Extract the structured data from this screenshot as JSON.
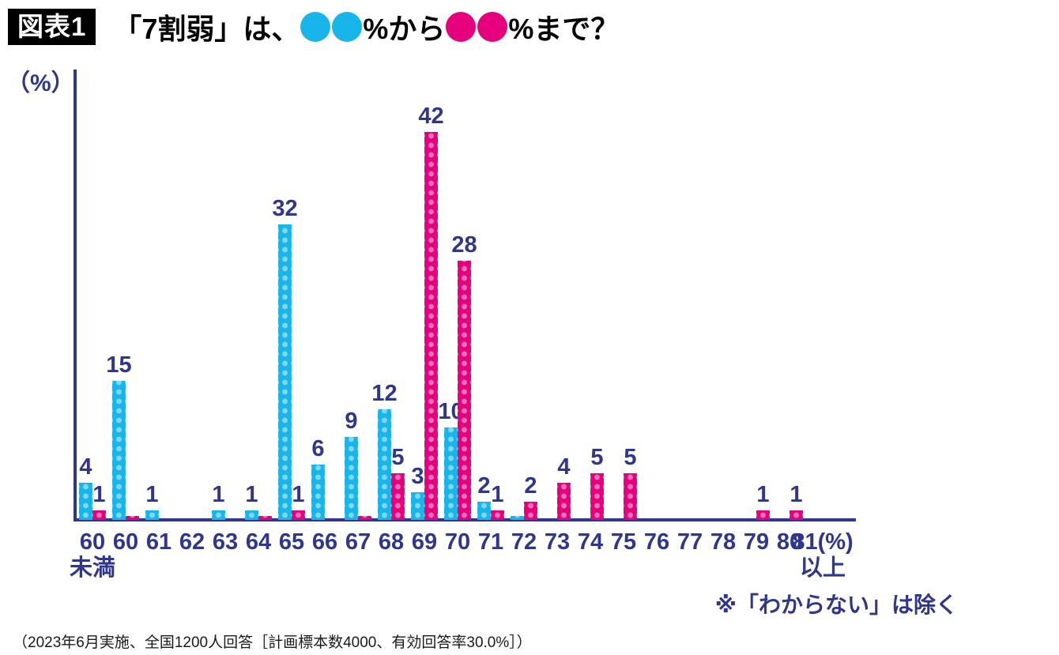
{
  "header": {
    "badge": "図表1",
    "title_prefix": "「7割弱」は、",
    "title_mid": "%から",
    "title_suffix": "%まで？"
  },
  "colors": {
    "navy": "#2f3690",
    "cyan": "#17b5ea",
    "magenta": "#e6007e"
  },
  "chart_data": {
    "type": "bar",
    "title": "「7割弱」は、●●%から●●%まで？",
    "xlabel": "",
    "ylabel": "（%）",
    "ylim": [
      0,
      45
    ],
    "grid": false,
    "legend_position": "none",
    "categories": [
      {
        "line1": "60",
        "line2": "未満"
      },
      {
        "line1": "60"
      },
      {
        "line1": "61"
      },
      {
        "line1": "62"
      },
      {
        "line1": "63"
      },
      {
        "line1": "64"
      },
      {
        "line1": "65"
      },
      {
        "line1": "66"
      },
      {
        "line1": "67"
      },
      {
        "line1": "68"
      },
      {
        "line1": "69"
      },
      {
        "line1": "70"
      },
      {
        "line1": "71"
      },
      {
        "line1": "72"
      },
      {
        "line1": "73"
      },
      {
        "line1": "74"
      },
      {
        "line1": "75"
      },
      {
        "line1": "76"
      },
      {
        "line1": "77"
      },
      {
        "line1": "78"
      },
      {
        "line1": "79"
      },
      {
        "line1": "80"
      },
      {
        "line1": "81(%)",
        "line2": "以上"
      }
    ],
    "series": [
      {
        "key": "blue",
        "color": "#17b5ea",
        "values": [
          4,
          15,
          1,
          0,
          1,
          1,
          32,
          6,
          9,
          12,
          3,
          10,
          2,
          0.4,
          0,
          0,
          0,
          0,
          0,
          0,
          0,
          0,
          0
        ],
        "labels": [
          "4",
          "15",
          "1",
          "",
          "1",
          "1",
          "32",
          "6",
          "9",
          "12",
          "3",
          "10",
          "2",
          "",
          "",
          "",
          "",
          "",
          "",
          "",
          "",
          "",
          ""
        ]
      },
      {
        "key": "pink",
        "color": "#e6007e",
        "values": [
          1,
          0.4,
          0,
          0,
          0,
          0.4,
          1,
          0,
          0.4,
          5,
          42,
          28,
          1,
          2,
          4,
          5,
          5,
          0,
          0,
          0,
          1,
          1,
          0
        ],
        "labels": [
          "1",
          "",
          "",
          "",
          "",
          "",
          "1",
          "",
          "",
          "5",
          "42",
          "28",
          "1",
          "2",
          "4",
          "5",
          "5",
          "",
          "",
          "",
          "1",
          "1",
          ""
        ]
      }
    ]
  },
  "notes": {
    "exclusion": "※「わからない」は除く"
  },
  "footer": {
    "source": "（2023年6月実施、全国1200人回答［計画標本数4000、有効回答率30.0%］）"
  }
}
